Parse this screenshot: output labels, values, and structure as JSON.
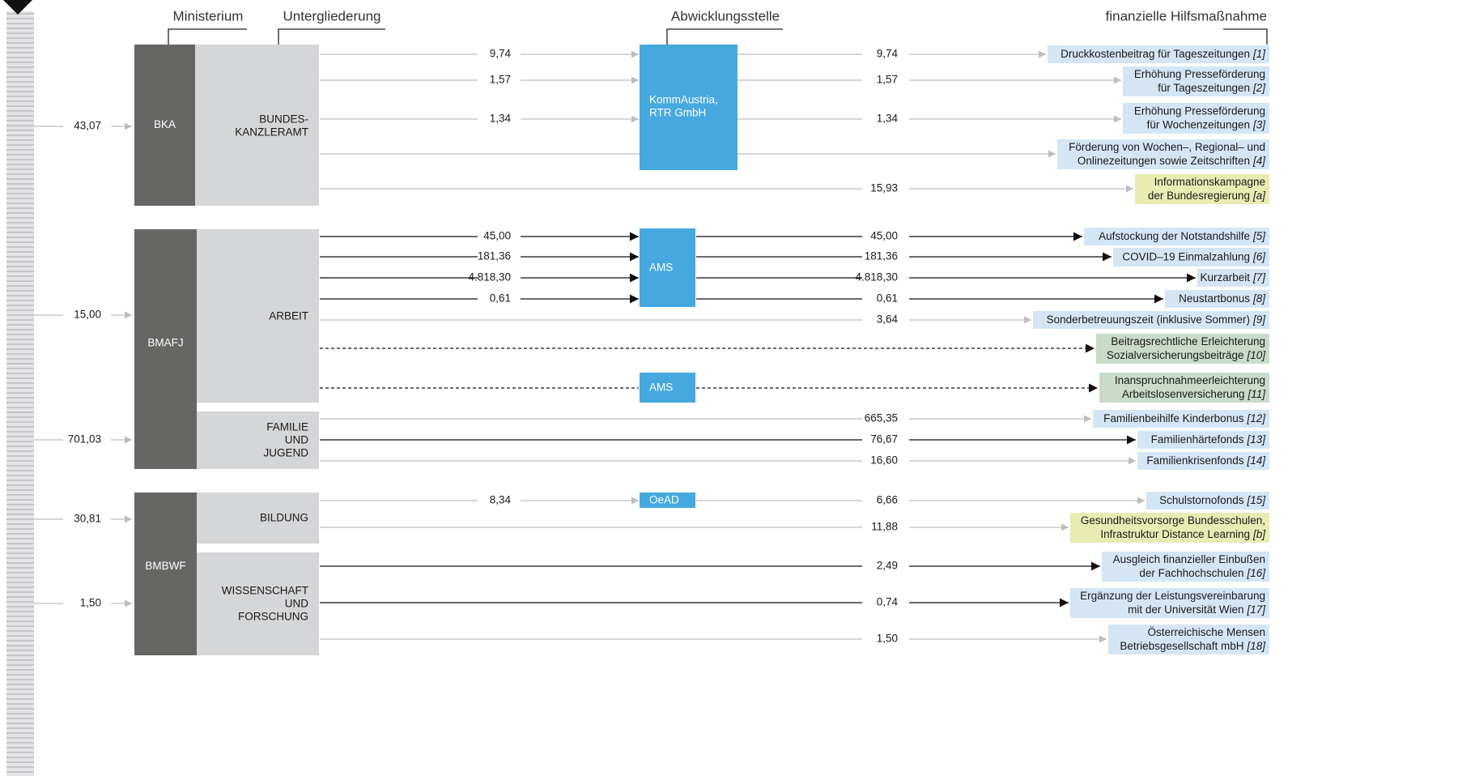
{
  "headers": {
    "ministry": "Ministerium",
    "subdivision": "Untergliederung",
    "agency": "Abwicklungsstelle",
    "measure": "finanzielle Hilfsmaßnahme"
  },
  "inflows": [
    "43,07",
    "15,00",
    "701,03",
    "30,81",
    "1,50"
  ],
  "ministries": [
    "BKA",
    "BMAFJ",
    "BMBWF"
  ],
  "subdivisions": [
    [
      "BUNDES-",
      "KANZLERAMT"
    ],
    [
      "ARBEIT"
    ],
    [
      "FAMILIE",
      "UND",
      "JUGEND"
    ],
    [
      "BILDUNG"
    ],
    [
      "WISSENSCHAFT",
      "UND",
      "FORSCHUNG"
    ]
  ],
  "agencies": [
    [
      "KommAustria,",
      "RTR GmbH"
    ],
    [
      "AMS"
    ],
    [
      "AMS"
    ],
    [
      "OeAD"
    ]
  ],
  "rows": [
    {
      "in": "9,74",
      "out": "9,74",
      "measure": {
        "lines": [
          "Druckkostenbeitrag für Tageszeitungen"
        ],
        "ref": "[1]"
      }
    },
    {
      "in": "1,57",
      "out": "1,57",
      "measure": {
        "lines": [
          "Erhöhung Presseförderung",
          "für Tageszeitungen"
        ],
        "ref": "[2]"
      }
    },
    {
      "in": "1,34",
      "out": "1,34",
      "measure": {
        "lines": [
          "Erhöhung Presseförderung",
          "für Wochenzeitungen"
        ],
        "ref": "[3]"
      }
    },
    {
      "measure": {
        "lines": [
          "Förderung von Wochen–, Regional– und",
          "Onlinezeitungen sowie Zeitschriften"
        ],
        "ref": "[4]"
      }
    },
    {
      "out": "15,93",
      "measure": {
        "lines": [
          "Informationskampagne",
          "der Bundesregierung"
        ],
        "ref": "[a]"
      }
    },
    {
      "in": "45,00",
      "out": "45,00",
      "measure": {
        "lines": [
          "Aufstockung der Notstandshilfe"
        ],
        "ref": "[5]"
      }
    },
    {
      "in": "181,36",
      "out": "181,36",
      "measure": {
        "lines": [
          "COVID–19 Einmalzahlung"
        ],
        "ref": "[6]"
      }
    },
    {
      "in": "4.818,30",
      "out": "4.818,30",
      "measure": {
        "lines": [
          "Kurzarbeit"
        ],
        "ref": "[7]"
      }
    },
    {
      "in": "0,61",
      "out": "0,61",
      "measure": {
        "lines": [
          "Neustartbonus"
        ],
        "ref": "[8]"
      }
    },
    {
      "out": "3,64",
      "measure": {
        "lines": [
          "Sonderbetreuungszeit (inklusive Sommer)"
        ],
        "ref": "[9]"
      }
    },
    {
      "measure": {
        "lines": [
          "Beitragsrechtliche Erleichterung",
          "Sozialversicherungsbeiträge"
        ],
        "ref": "[10]"
      }
    },
    {
      "measure": {
        "lines": [
          "Inanspruchnahmeerleichterung",
          "Arbeitslosenversicherung"
        ],
        "ref": "[11]"
      }
    },
    {
      "out": "665,35",
      "measure": {
        "lines": [
          "Familienbeihilfe Kinderbonus"
        ],
        "ref": "[12]"
      }
    },
    {
      "out": "76,67",
      "measure": {
        "lines": [
          "Familienhärtefonds"
        ],
        "ref": "[13]"
      }
    },
    {
      "out": "16,60",
      "measure": {
        "lines": [
          "Familienkrisenfonds"
        ],
        "ref": "[14]"
      }
    },
    {
      "in": "8,34",
      "out": "6,66",
      "measure": {
        "lines": [
          "Schulstornofonds"
        ],
        "ref": "[15]"
      }
    },
    {
      "out": "11,88",
      "measure": {
        "lines": [
          "Gesundheitsvorsorge Bundesschulen,",
          "Infrastruktur Distance Learning"
        ],
        "ref": "[b]"
      }
    },
    {
      "out": "2,49",
      "measure": {
        "lines": [
          "Ausgleich finanzieller Einbußen",
          "der Fachhochschulen"
        ],
        "ref": "[16]"
      }
    },
    {
      "out": "0,74",
      "measure": {
        "lines": [
          "Ergänzung der Leistungsvereinbarung",
          "mit der Universität Wien"
        ],
        "ref": "[17]"
      }
    },
    {
      "out": "1,50",
      "measure": {
        "lines": [
          "Österreichische Mensen",
          "Betriebsgesellschaft mbH"
        ],
        "ref": "[18]"
      }
    }
  ]
}
